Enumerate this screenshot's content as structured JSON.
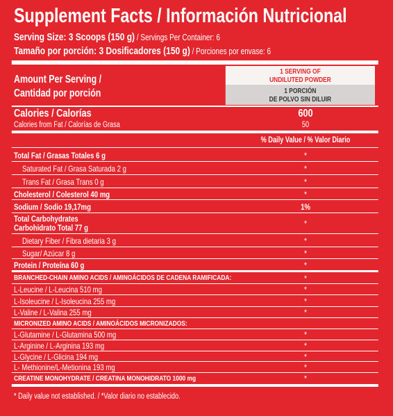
{
  "header": {
    "title": "Supplement Facts / Información Nutricional",
    "serving_size": "Serving Size: 3 Scoops (150 g)",
    "servings_per_container": " / Servings Per Container: 6",
    "serving_size_es": "Tamaño por porción: 3 Dosificadores (150 g)",
    "servings_per_container_es": " / Porciones por envase: 6"
  },
  "amount_header": {
    "label": "Amount Per Serving /",
    "label_es": "Cantidad por porción",
    "column_1": "1 SERVING OF",
    "column_2": "UNDILUTED POWDER",
    "column_es_1": "1 PORCIÓN",
    "column_es_2": "DE POLVO SIN DILUIR"
  },
  "calories": {
    "label": "Calories / Calorías",
    "value": "600",
    "fat_label": "Calories from Fat / Calorías de Grasa",
    "fat_value": "50"
  },
  "daily_value_header": "% Daily Value / % Valor Diario",
  "rows": [
    {
      "label": "Total Fat / Grasas Totales  6 g",
      "dv": "*"
    },
    {
      "label": "Saturated Fat / Grasa Saturada  2 g",
      "dv": "*"
    },
    {
      "label": "Trans Fat / Grasa Trans  0 g",
      "dv": "*"
    },
    {
      "label": "Cholesterol / Colesterol  40 mg",
      "dv": "*"
    },
    {
      "label": "Sodium / Sodio  19,17mg",
      "dv": "1%"
    },
    {
      "label": "Total Carbohydrates",
      "label_2": "Carbohidrato Total  77 g",
      "dv": "*"
    },
    {
      "label": "Dietary Fiber / Fibra dietaria  3 g",
      "dv": "*"
    },
    {
      "label": "Sugar/ Azúcar  8 g",
      "dv": "*"
    },
    {
      "label": "Protein / Proteína  60 g",
      "dv": "*"
    },
    {
      "label": "BRANCHED-CHAIN AMINO ACIDS / AMINOÁCIDOS DE CADENA RAMIFICADA:",
      "dv": "*"
    },
    {
      "label": "L-Leucine / L-Leucina  510 mg",
      "dv": "*"
    },
    {
      "label": "L-Isoleucine / L-Isoleucina  255 mg",
      "dv": "*"
    },
    {
      "label": "L-Valine / L-Valina  255 mg",
      "dv": "*"
    },
    {
      "label": "MICRONIZED AMINO ACIDS / AMINOÁCIDOS MICRONIZADOS:"
    },
    {
      "label": "L-Glutamine / L-Glutamina  500 mg",
      "dv": "*"
    },
    {
      "label": "L-Arginine / L-Arginina  193 mg",
      "dv": "*"
    },
    {
      "label": "L-Glycine / L-Glicina  194 mg",
      "dv": "*"
    },
    {
      "label": "L- Methionine/L-Metionina  193 mg",
      "dv": "*"
    },
    {
      "label": "CREATINE MONOHYDRATE / CREATINA MONOHIDRATO  1000 mg",
      "dv": "*"
    }
  ],
  "footnote": "* Daily value not established. / *Valor diario no establecido."
}
